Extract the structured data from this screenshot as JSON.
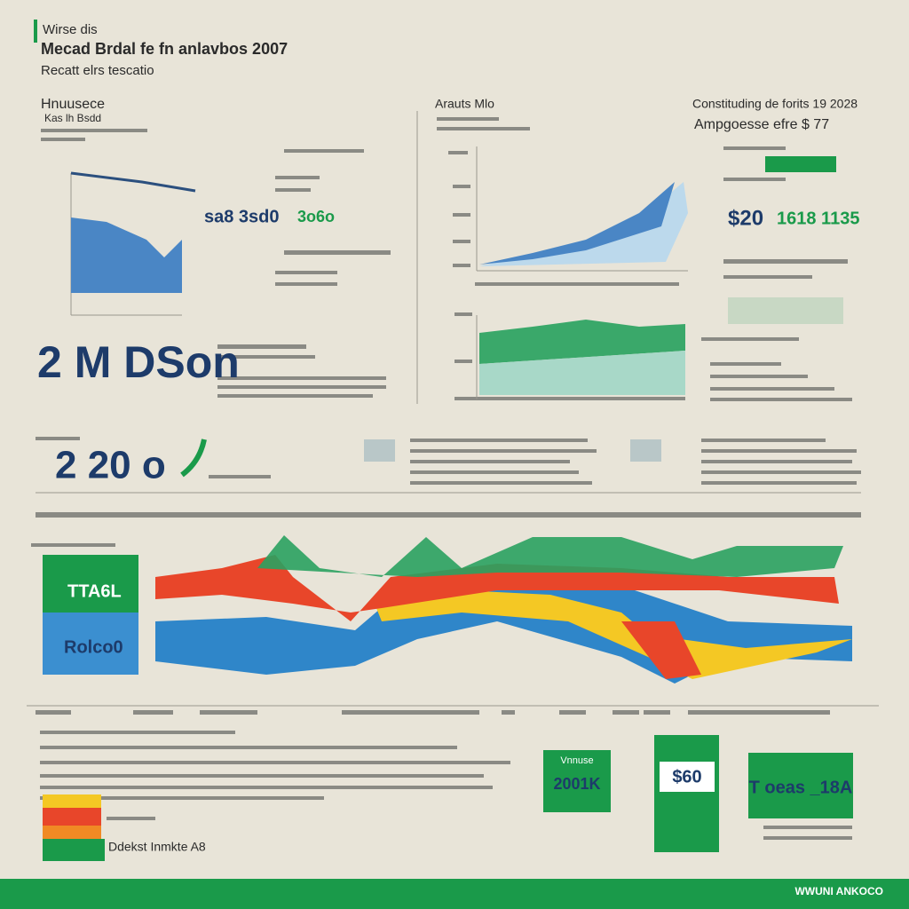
{
  "header": {
    "title": "Wirse dis",
    "subtitle": "Mecad Brdal fe fn anlavbos 2007",
    "tagline": "Recatt elrs tescatio"
  },
  "left_panel": {
    "title": "Hnuusece",
    "subtitle": "Kas lh Bsdd",
    "figure_a": "sa8 3sd0",
    "figure_b": "3o6o",
    "big_number": "2 M DSon"
  },
  "middle_panel": {
    "title": "Arauts Mlo"
  },
  "right_panel": {
    "title": "Constituding de forits 19 2028",
    "subtitle": "Ampgoesse efre $ 77",
    "figure_a": "$20",
    "figure_b": "1618 1135"
  },
  "band": {
    "big_number": "2 20 o"
  },
  "trend": {
    "box_top": "TTA6L",
    "box_bottom": "Rolco0"
  },
  "cards": [
    {
      "title": "Vnnuse",
      "value": "2001K"
    },
    {
      "value": "$60"
    },
    {
      "value": "T oeas _18A"
    }
  ],
  "legend_note": "Ddekst Inmkte A8",
  "footer": "WWUNI ANKOCO"
}
